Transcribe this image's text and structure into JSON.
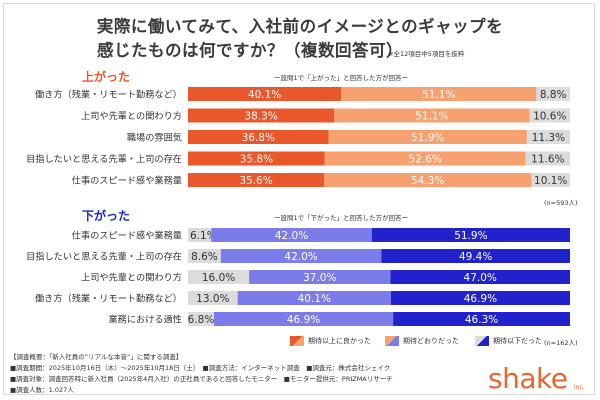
{
  "title": {
    "line1": "実際に働いてみて、入社前のイメージとのギャップを",
    "line2": "感じたものは何ですか？（複数回答可）",
    "note": "※全12項目中5項目を抜粋"
  },
  "colors": {
    "up_dark": "#e9572b",
    "up_light": "#f7a070",
    "down_dark": "#2222cc",
    "down_mid": "#7b7bea",
    "gray": "#dcdcdc",
    "up_label": "#e9572b",
    "down_label": "#2222cc"
  },
  "chart_data": [
    {
      "type": "bar",
      "orientation": "horizontal-stacked-100",
      "label": "上がった",
      "subtitle": "ー設問1で「上がった」と回答した方が回答ー",
      "n_label": "(n=593人)",
      "categories": [
        "働き方（残業・リモート勤務など）",
        "上司や先輩との関わり方",
        "職場の雰囲気",
        "目指したいと思える先輩・上司の存在",
        "仕事のスピード感や業務量"
      ],
      "series": [
        {
          "name": "期待以上に良かった",
          "values": [
            40.1,
            38.3,
            36.8,
            35.8,
            35.6
          ]
        },
        {
          "name": "期待どおりだった",
          "values": [
            51.1,
            51.1,
            51.9,
            52.6,
            54.3
          ]
        },
        {
          "name": "期待以下だった",
          "values": [
            8.8,
            10.6,
            11.3,
            11.6,
            10.1
          ]
        }
      ],
      "value_labels": [
        [
          "40.1%",
          "51.1%",
          "8.8%"
        ],
        [
          "38.3%",
          "51.1%",
          "10.6%"
        ],
        [
          "36.8%",
          "51.9%",
          "11.3%"
        ],
        [
          "35.8%",
          "52.6%",
          "11.6%"
        ],
        [
          "35.6%",
          "54.3%",
          "10.1%"
        ]
      ]
    },
    {
      "type": "bar",
      "orientation": "horizontal-stacked-100",
      "label": "下がった",
      "subtitle": "ー設問1で「下がった」と回答した方が回答ー",
      "n_label": "(n=162人)",
      "categories": [
        "仕事のスピード感や業務量",
        "目指したいと思える先輩・上司の存在",
        "上司や先輩との関わり方",
        "働き方（残業・リモート勤務など）",
        "業務における適性"
      ],
      "series": [
        {
          "name": "期待以上に良かった",
          "values": [
            6.1,
            8.6,
            16.0,
            13.0,
            6.8
          ]
        },
        {
          "name": "期待どおりだった",
          "values": [
            42.0,
            42.0,
            37.0,
            40.1,
            46.9
          ]
        },
        {
          "name": "期待以下だった",
          "values": [
            51.9,
            49.4,
            47.0,
            46.9,
            46.3
          ]
        }
      ],
      "value_labels": [
        [
          "6.1%",
          "42.0%",
          "51.9%"
        ],
        [
          "8.6%",
          "42.0%",
          "49.4%"
        ],
        [
          "16.0%",
          "37.0%",
          "47.0%"
        ],
        [
          "13.0%",
          "40.1%",
          "46.9%"
        ],
        [
          "6.8%",
          "46.9%",
          "46.3%"
        ]
      ]
    }
  ],
  "legend": [
    "期待以上に良かった",
    "期待どおりだった",
    "期待以下だった"
  ],
  "footer": [
    "【調査概要：「新入社員の“リアルな本音”」に関する調査】",
    "■調査期間：2025年10月16日（木）〜2025年10月18日（土）　■調査方法：インターネット調査　■調査元：株式会社シェイク",
    "■調査対象：調査回答時に新入社員（2025年4月入社）の正社員であると回答したモニター　■モニター提供元：PRIZMAリサーチ",
    "■調査人数：1,027人"
  ],
  "logo": {
    "text": "shake",
    "suffix": "inc."
  }
}
